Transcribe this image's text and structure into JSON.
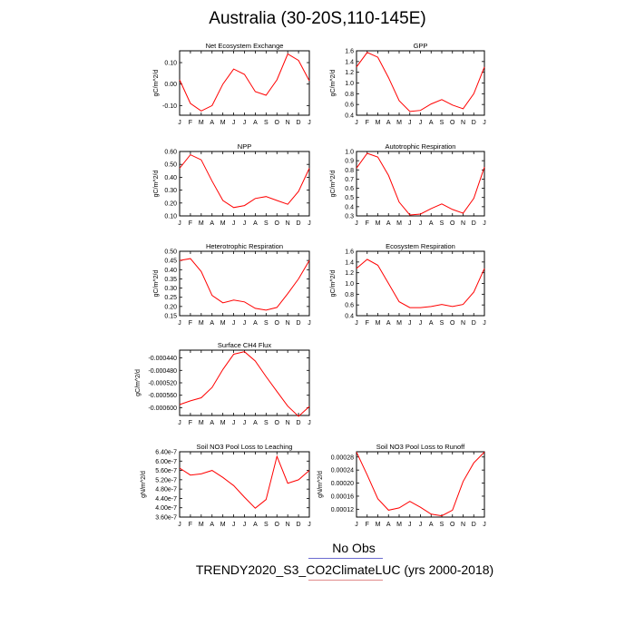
{
  "figure": {
    "title": "Australia (30-20S,110-145E)",
    "legend_line1": "No Obs",
    "legend_line2": "TRENDY2020_S3_CO2ClimateLUC (yrs 2000-2018)",
    "line_color": "#ff0000"
  },
  "chart_data": [
    {
      "type": "line",
      "title": "Net Ecosystem Exchange",
      "ylabel": "gC/m^2/d",
      "categories": [
        "J",
        "F",
        "M",
        "A",
        "M",
        "J",
        "J",
        "A",
        "S",
        "O",
        "N",
        "D",
        "J"
      ],
      "values": [
        0.02,
        -0.09,
        -0.125,
        -0.1,
        0.0,
        0.07,
        0.045,
        -0.035,
        -0.052,
        0.02,
        0.14,
        0.11,
        0.015
      ],
      "ylim": [
        -0.145,
        0.155
      ],
      "yticks": [
        -0.1,
        0.0,
        0.1
      ],
      "yticklabels": [
        "-0.10",
        "0.00",
        "0.10"
      ]
    },
    {
      "type": "line",
      "title": "GPP",
      "ylabel": "gC/m^2/d",
      "categories": [
        "J",
        "F",
        "M",
        "A",
        "M",
        "J",
        "J",
        "A",
        "S",
        "O",
        "N",
        "D",
        "J"
      ],
      "values": [
        1.3,
        1.57,
        1.48,
        1.1,
        0.67,
        0.47,
        0.49,
        0.61,
        0.69,
        0.59,
        0.52,
        0.8,
        1.3
      ],
      "ylim": [
        0.4,
        1.6
      ],
      "yticks": [
        0.4,
        0.6,
        0.8,
        1.0,
        1.2,
        1.4,
        1.6
      ],
      "yticklabels": [
        "0.4",
        "0.6",
        "0.8",
        "1.0",
        "1.2",
        "1.4",
        "1.6"
      ]
    },
    {
      "type": "line",
      "title": "NPP",
      "ylabel": "gC/m^2/d",
      "categories": [
        "J",
        "F",
        "M",
        "A",
        "M",
        "J",
        "J",
        "A",
        "S",
        "O",
        "N",
        "D",
        "J"
      ],
      "values": [
        0.47,
        0.575,
        0.535,
        0.37,
        0.22,
        0.165,
        0.18,
        0.235,
        0.25,
        0.22,
        0.19,
        0.29,
        0.47
      ],
      "ylim": [
        0.1,
        0.6
      ],
      "yticks": [
        0.1,
        0.2,
        0.3,
        0.4,
        0.5,
        0.6
      ],
      "yticklabels": [
        "0.10",
        "0.20",
        "0.30",
        "0.40",
        "0.50",
        "0.60"
      ]
    },
    {
      "type": "line",
      "title": "Autotrophic Respiration",
      "ylabel": "gC/m^2/d",
      "categories": [
        "J",
        "F",
        "M",
        "A",
        "M",
        "J",
        "J",
        "A",
        "S",
        "O",
        "N",
        "D",
        "J"
      ],
      "values": [
        0.82,
        0.98,
        0.94,
        0.74,
        0.45,
        0.31,
        0.32,
        0.38,
        0.43,
        0.37,
        0.33,
        0.49,
        0.83
      ],
      "ylim": [
        0.3,
        1.0
      ],
      "yticks": [
        0.3,
        0.4,
        0.5,
        0.6,
        0.7,
        0.8,
        0.9,
        1.0
      ],
      "yticklabels": [
        "0.3",
        "0.4",
        "0.5",
        "0.6",
        "0.7",
        "0.8",
        "0.9",
        "1.0"
      ]
    },
    {
      "type": "line",
      "title": "Heterotrophic Respiration",
      "ylabel": "gC/m^2/d",
      "categories": [
        "J",
        "F",
        "M",
        "A",
        "M",
        "J",
        "J",
        "A",
        "S",
        "O",
        "N",
        "D",
        "J"
      ],
      "values": [
        0.45,
        0.46,
        0.39,
        0.26,
        0.22,
        0.235,
        0.225,
        0.19,
        0.18,
        0.195,
        0.27,
        0.35,
        0.45
      ],
      "ylim": [
        0.15,
        0.5
      ],
      "yticks": [
        0.15,
        0.2,
        0.25,
        0.3,
        0.35,
        0.4,
        0.45,
        0.5
      ],
      "yticklabels": [
        "0.15",
        "0.20",
        "0.25",
        "0.30",
        "0.35",
        "0.40",
        "0.45",
        "0.50"
      ]
    },
    {
      "type": "line",
      "title": "Ecosystem Respiration",
      "ylabel": "gC/m^2/d",
      "categories": [
        "J",
        "F",
        "M",
        "A",
        "M",
        "J",
        "J",
        "A",
        "S",
        "O",
        "N",
        "D",
        "J"
      ],
      "values": [
        1.28,
        1.45,
        1.34,
        1.0,
        0.66,
        0.55,
        0.55,
        0.57,
        0.61,
        0.57,
        0.61,
        0.84,
        1.28
      ],
      "ylim": [
        0.4,
        1.6
      ],
      "yticks": [
        0.4,
        0.6,
        0.8,
        1.0,
        1.2,
        1.4,
        1.6
      ],
      "yticklabels": [
        "0.4",
        "0.6",
        "0.8",
        "1.0",
        "1.2",
        "1.4",
        "1.6"
      ]
    },
    {
      "type": "line",
      "title": "Surface CH4 Flux",
      "ylabel": "gC/m^2/d",
      "categories": [
        "J",
        "F",
        "M",
        "A",
        "M",
        "J",
        "J",
        "A",
        "S",
        "O",
        "N",
        "D",
        "J"
      ],
      "values": [
        -0.00059,
        -0.000578,
        -0.000568,
        -0.000535,
        -0.000477,
        -0.000428,
        -0.00042,
        -0.00045,
        -0.0005,
        -0.000548,
        -0.000595,
        -0.000628,
        -0.000596
      ],
      "ylim": [
        -0.000625,
        -0.000415
      ],
      "yticks": [
        -0.0006,
        -0.00056,
        -0.00052,
        -0.00048,
        -0.00044
      ],
      "yticklabels": [
        "-0.000600",
        "-0.000560",
        "-0.000520",
        "-0.000480",
        "-0.000440"
      ]
    },
    {
      "type": "line",
      "title": "Soil NO3 Pool Loss to Leaching",
      "ylabel": "gN/m^2/d",
      "categories": [
        "J",
        "F",
        "M",
        "A",
        "M",
        "J",
        "J",
        "A",
        "S",
        "O",
        "N",
        "D",
        "J"
      ],
      "values": [
        5.7e-07,
        5.4e-07,
        5.45e-07,
        5.6e-07,
        5.3e-07,
        4.95e-07,
        4.45e-07,
        3.98e-07,
        4.35e-07,
        6.2e-07,
        5.05e-07,
        5.2e-07,
        5.6e-07
      ],
      "ylim": [
        3.6e-07,
        6.4e-07
      ],
      "yticks": [
        3.6e-07,
        4e-07,
        4.4e-07,
        4.8e-07,
        5.2e-07,
        5.6e-07,
        6e-07,
        6.4e-07
      ],
      "yticklabels": [
        "3.60e-7",
        "4.00e-7",
        "4.40e-7",
        "4.80e-7",
        "5.20e-7",
        "5.60e-7",
        "6.00e-7",
        "6.40e-7"
      ]
    },
    {
      "type": "line",
      "title": "Soil NO3 Pool Loss to Runoff",
      "ylabel": "gN/m^2/d",
      "categories": [
        "J",
        "F",
        "M",
        "A",
        "M",
        "J",
        "J",
        "A",
        "S",
        "O",
        "N",
        "D",
        "J"
      ],
      "values": [
        0.000295,
        0.000225,
        0.000152,
        0.000117,
        0.000124,
        0.000144,
        0.000126,
        0.000105,
        0.0001,
        0.000117,
        0.000205,
        0.000262,
        0.000295
      ],
      "ylim": [
        9.6e-05,
        0.000296
      ],
      "yticks": [
        0.00012,
        0.00016,
        0.0002,
        0.00024,
        0.00028
      ],
      "yticklabels": [
        "0.00012",
        "0.00016",
        "0.00020",
        "0.00024",
        "0.00028"
      ]
    }
  ]
}
